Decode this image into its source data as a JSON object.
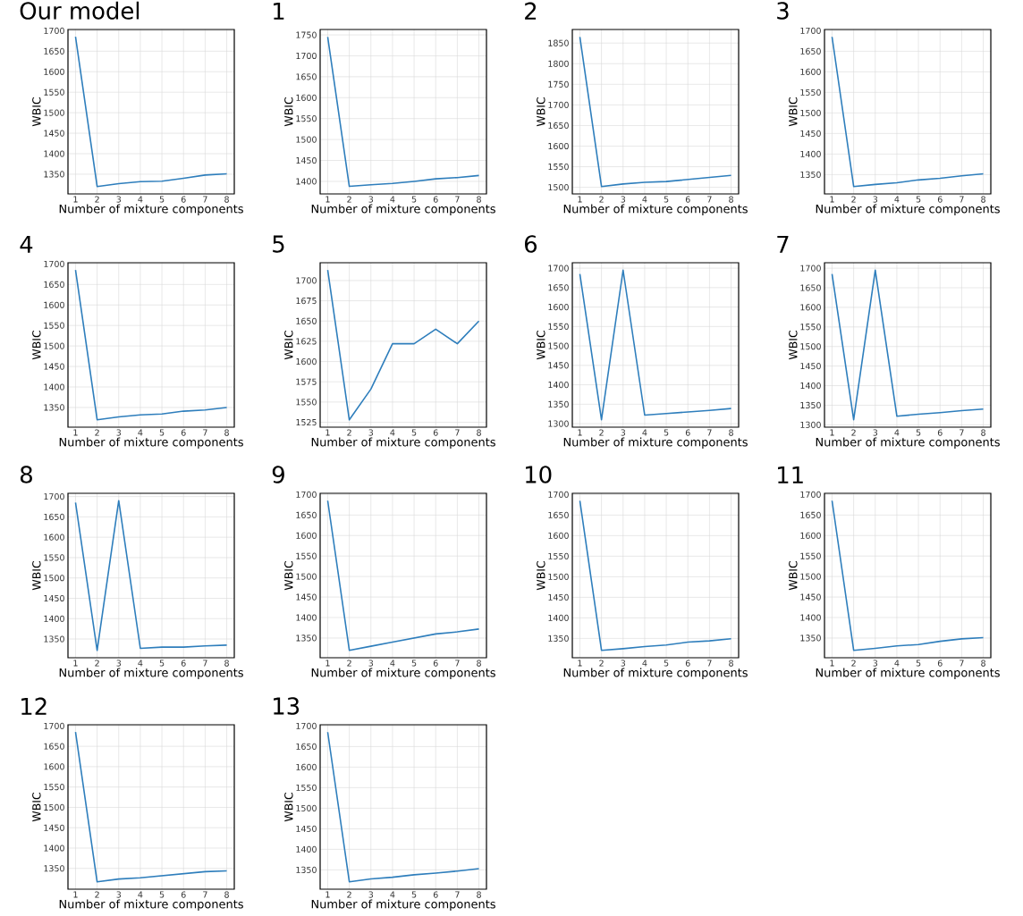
{
  "chart_data": [
    {
      "type": "line",
      "title": "Our model",
      "xlabel": "Number of mixture components",
      "ylabel": "WBIC",
      "x": [
        1,
        2,
        3,
        4,
        5,
        6,
        7,
        8
      ],
      "values": [
        1685,
        1320,
        1327,
        1332,
        1333,
        1340,
        1348,
        1351
      ],
      "color": "#2e7ebc",
      "xlim": [
        0.65,
        8.35
      ],
      "ylim": [
        1302,
        1703
      ],
      "xticks": [
        1,
        2,
        3,
        4,
        5,
        6,
        7,
        8
      ],
      "yticks": [
        1350,
        1400,
        1450,
        1500,
        1550,
        1600,
        1650,
        1700
      ],
      "grid": true
    },
    {
      "type": "line",
      "title": "1",
      "xlabel": "Number of mixture components",
      "ylabel": "WBIC",
      "x": [
        1,
        2,
        3,
        4,
        5,
        6,
        7,
        8
      ],
      "values": [
        1745,
        1388,
        1392,
        1395,
        1400,
        1406,
        1409,
        1414
      ],
      "color": "#2e7ebc",
      "xlim": [
        0.65,
        8.35
      ],
      "ylim": [
        1370,
        1763
      ],
      "xticks": [
        1,
        2,
        3,
        4,
        5,
        6,
        7,
        8
      ],
      "yticks": [
        1400,
        1450,
        1500,
        1550,
        1600,
        1650,
        1700,
        1750
      ],
      "grid": true
    },
    {
      "type": "line",
      "title": "2",
      "xlabel": "Number of mixture components",
      "ylabel": "WBIC",
      "x": [
        1,
        2,
        3,
        4,
        5,
        6,
        7,
        8
      ],
      "values": [
        1865,
        1502,
        1508,
        1512,
        1514,
        1519,
        1524,
        1529
      ],
      "color": "#2e7ebc",
      "xlim": [
        0.65,
        8.35
      ],
      "ylim": [
        1484,
        1883
      ],
      "xticks": [
        1,
        2,
        3,
        4,
        5,
        6,
        7,
        8
      ],
      "yticks": [
        1500,
        1550,
        1600,
        1650,
        1700,
        1750,
        1800,
        1850
      ],
      "grid": true
    },
    {
      "type": "line",
      "title": "3",
      "xlabel": "Number of mixture components",
      "ylabel": "WBIC",
      "x": [
        1,
        2,
        3,
        4,
        5,
        6,
        7,
        8
      ],
      "values": [
        1685,
        1321,
        1326,
        1330,
        1337,
        1341,
        1347,
        1352
      ],
      "color": "#2e7ebc",
      "xlim": [
        0.65,
        8.35
      ],
      "ylim": [
        1303,
        1703
      ],
      "xticks": [
        1,
        2,
        3,
        4,
        5,
        6,
        7,
        8
      ],
      "yticks": [
        1350,
        1400,
        1450,
        1500,
        1550,
        1600,
        1650,
        1700
      ],
      "grid": true
    },
    {
      "type": "line",
      "title": "4",
      "xlabel": "Number of mixture components",
      "ylabel": "WBIC",
      "x": [
        1,
        2,
        3,
        4,
        5,
        6,
        7,
        8
      ],
      "values": [
        1685,
        1320,
        1327,
        1332,
        1334,
        1341,
        1344,
        1350
      ],
      "color": "#2e7ebc",
      "xlim": [
        0.65,
        8.35
      ],
      "ylim": [
        1302,
        1703
      ],
      "xticks": [
        1,
        2,
        3,
        4,
        5,
        6,
        7,
        8
      ],
      "yticks": [
        1350,
        1400,
        1450,
        1500,
        1550,
        1600,
        1650,
        1700
      ],
      "grid": true
    },
    {
      "type": "line",
      "title": "5",
      "xlabel": "Number of mixture components",
      "ylabel": "WBIC",
      "x": [
        1,
        2,
        3,
        4,
        5,
        6,
        7,
        8
      ],
      "values": [
        1713,
        1528,
        1566,
        1622,
        1622,
        1640,
        1622,
        1650
      ],
      "color": "#2e7ebc",
      "xlim": [
        0.65,
        8.35
      ],
      "ylim": [
        1519,
        1722
      ],
      "xticks": [
        1,
        2,
        3,
        4,
        5,
        6,
        7,
        8
      ],
      "yticks": [
        1525,
        1550,
        1575,
        1600,
        1625,
        1650,
        1675,
        1700
      ],
      "grid": true
    },
    {
      "type": "line",
      "title": "6",
      "xlabel": "Number of mixture components",
      "ylabel": "WBIC",
      "x": [
        1,
        2,
        3,
        4,
        5,
        6,
        7,
        8
      ],
      "values": [
        1685,
        1310,
        1695,
        1322,
        1326,
        1330,
        1334,
        1339
      ],
      "color": "#2e7ebc",
      "xlim": [
        0.65,
        8.35
      ],
      "ylim": [
        1291,
        1714
      ],
      "xticks": [
        1,
        2,
        3,
        4,
        5,
        6,
        7,
        8
      ],
      "yticks": [
        1300,
        1350,
        1400,
        1450,
        1500,
        1550,
        1600,
        1650,
        1700
      ],
      "grid": true
    },
    {
      "type": "line",
      "title": "7",
      "xlabel": "Number of mixture components",
      "ylabel": "WBIC",
      "x": [
        1,
        2,
        3,
        4,
        5,
        6,
        7,
        8
      ],
      "values": [
        1685,
        1313,
        1695,
        1322,
        1327,
        1331,
        1336,
        1340
      ],
      "color": "#2e7ebc",
      "xlim": [
        0.65,
        8.35
      ],
      "ylim": [
        1294,
        1714
      ],
      "xticks": [
        1,
        2,
        3,
        4,
        5,
        6,
        7,
        8
      ],
      "yticks": [
        1300,
        1350,
        1400,
        1450,
        1500,
        1550,
        1600,
        1650,
        1700
      ],
      "grid": true
    },
    {
      "type": "line",
      "title": "8",
      "xlabel": "Number of mixture components",
      "ylabel": "WBIC",
      "x": [
        1,
        2,
        3,
        4,
        5,
        6,
        7,
        8
      ],
      "values": [
        1685,
        1322,
        1690,
        1327,
        1330,
        1330,
        1333,
        1335
      ],
      "color": "#2e7ebc",
      "xlim": [
        0.65,
        8.35
      ],
      "ylim": [
        1304,
        1708
      ],
      "xticks": [
        1,
        2,
        3,
        4,
        5,
        6,
        7,
        8
      ],
      "yticks": [
        1350,
        1400,
        1450,
        1500,
        1550,
        1600,
        1650,
        1700
      ],
      "grid": true
    },
    {
      "type": "line",
      "title": "9",
      "xlabel": "Number of mixture components",
      "ylabel": "WBIC",
      "x": [
        1,
        2,
        3,
        4,
        5,
        6,
        7,
        8
      ],
      "values": [
        1685,
        1320,
        1330,
        1340,
        1350,
        1360,
        1365,
        1372
      ],
      "color": "#2e7ebc",
      "xlim": [
        0.65,
        8.35
      ],
      "ylim": [
        1302,
        1703
      ],
      "xticks": [
        1,
        2,
        3,
        4,
        5,
        6,
        7,
        8
      ],
      "yticks": [
        1350,
        1400,
        1450,
        1500,
        1550,
        1600,
        1650,
        1700
      ],
      "grid": true
    },
    {
      "type": "line",
      "title": "10",
      "xlabel": "Number of mixture components",
      "ylabel": "WBIC",
      "x": [
        1,
        2,
        3,
        4,
        5,
        6,
        7,
        8
      ],
      "values": [
        1685,
        1321,
        1325,
        1330,
        1334,
        1341,
        1344,
        1349
      ],
      "color": "#2e7ebc",
      "xlim": [
        0.65,
        8.35
      ],
      "ylim": [
        1303,
        1703
      ],
      "xticks": [
        1,
        2,
        3,
        4,
        5,
        6,
        7,
        8
      ],
      "yticks": [
        1350,
        1400,
        1450,
        1500,
        1550,
        1600,
        1650,
        1700
      ],
      "grid": true
    },
    {
      "type": "line",
      "title": "11",
      "xlabel": "Number of mixture components",
      "ylabel": "WBIC",
      "x": [
        1,
        2,
        3,
        4,
        5,
        6,
        7,
        8
      ],
      "values": [
        1685,
        1320,
        1325,
        1331,
        1334,
        1342,
        1348,
        1351
      ],
      "color": "#2e7ebc",
      "xlim": [
        0.65,
        8.35
      ],
      "ylim": [
        1302,
        1703
      ],
      "xticks": [
        1,
        2,
        3,
        4,
        5,
        6,
        7,
        8
      ],
      "yticks": [
        1350,
        1400,
        1450,
        1500,
        1550,
        1600,
        1650,
        1700
      ],
      "grid": true
    },
    {
      "type": "line",
      "title": "12",
      "xlabel": "Number of mixture components",
      "ylabel": "WBIC",
      "x": [
        1,
        2,
        3,
        4,
        5,
        6,
        7,
        8
      ],
      "values": [
        1685,
        1317,
        1324,
        1327,
        1332,
        1337,
        1342,
        1344
      ],
      "color": "#2e7ebc",
      "xlim": [
        0.65,
        8.35
      ],
      "ylim": [
        1299,
        1703
      ],
      "xticks": [
        1,
        2,
        3,
        4,
        5,
        6,
        7,
        8
      ],
      "yticks": [
        1350,
        1400,
        1450,
        1500,
        1550,
        1600,
        1650,
        1700
      ],
      "grid": true
    },
    {
      "type": "line",
      "title": "13",
      "xlabel": "Number of mixture components",
      "ylabel": "WBIC",
      "x": [
        1,
        2,
        3,
        4,
        5,
        6,
        7,
        8
      ],
      "values": [
        1685,
        1321,
        1328,
        1332,
        1338,
        1342,
        1347,
        1353
      ],
      "color": "#2e7ebc",
      "xlim": [
        0.65,
        8.35
      ],
      "ylim": [
        1303,
        1703
      ],
      "xticks": [
        1,
        2,
        3,
        4,
        5,
        6,
        7,
        8
      ],
      "yticks": [
        1350,
        1400,
        1450,
        1500,
        1550,
        1600,
        1650,
        1700
      ],
      "grid": true
    }
  ]
}
